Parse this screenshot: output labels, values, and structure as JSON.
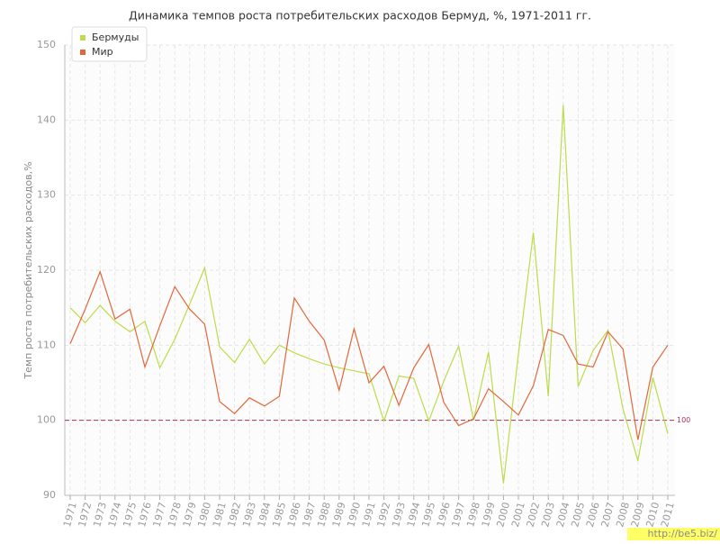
{
  "chart_data": {
    "type": "line",
    "title": "Динамика темпов роста потребительских расходов Бермуд, %, 1971-2011 гг.",
    "y_label": "Темп роста потребительских расходов,%",
    "categories": [
      "1971",
      "1972",
      "1973",
      "1974",
      "1975",
      "1976",
      "1977",
      "1978",
      "1979",
      "1980",
      "1981",
      "1982",
      "1983",
      "1984",
      "1985",
      "1986",
      "1987",
      "1988",
      "1989",
      "1990",
      "1991",
      "1992",
      "1993",
      "1994",
      "1995",
      "1996",
      "1997",
      "1998",
      "1999",
      "2000",
      "2001",
      "2002",
      "2003",
      "2004",
      "2005",
      "2006",
      "2007",
      "2008",
      "2009",
      "2010",
      "2011"
    ],
    "series": [
      {
        "name": "Бермуды",
        "color": "#bcdc4a",
        "values": [
          115,
          113,
          115.3,
          113.2,
          111.8,
          113.2,
          107,
          110.8,
          115.5,
          120.3,
          109.8,
          107.7,
          110.8,
          107.5,
          110,
          109,
          108.2,
          107.5,
          107,
          106.6,
          106.2,
          99.9,
          105.9,
          105.6,
          99.9,
          105.2,
          109.9,
          100,
          109.1,
          91.6,
          108.8,
          125,
          103.2,
          142,
          104.5,
          109.3,
          112,
          101.5,
          94.6,
          105.7,
          98.2
        ]
      },
      {
        "name": "Мир",
        "color": "#e0683a",
        "values": [
          110.2,
          114.8,
          119.8,
          113.5,
          114.8,
          107.1,
          112.6,
          117.8,
          114.8,
          112.8,
          102.5,
          100.9,
          103,
          101.9,
          103.2,
          116.3,
          113.2,
          110.7,
          104,
          112.2,
          105,
          107.2,
          102,
          107,
          110.1,
          102.4,
          99.3,
          100.2,
          104.2,
          102.5,
          100.7,
          104.6,
          112.1,
          111.3,
          107.5,
          107.1,
          111.8,
          109.5,
          97.4,
          107.1,
          110
        ]
      }
    ],
    "ylim": [
      90,
      150
    ],
    "yticks": [
      90,
      100,
      110,
      120,
      130,
      140,
      150
    ],
    "grid": true,
    "reference_line": 100,
    "reference_color": "#a0345a",
    "legend": "top-left",
    "watermark": "http://be5.biz/"
  }
}
